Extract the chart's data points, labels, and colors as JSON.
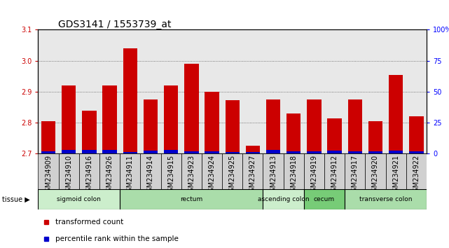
{
  "title": "GDS3141 / 1553739_at",
  "samples": [
    "GSM234909",
    "GSM234910",
    "GSM234916",
    "GSM234926",
    "GSM234911",
    "GSM234914",
    "GSM234915",
    "GSM234923",
    "GSM234924",
    "GSM234925",
    "GSM234927",
    "GSM234913",
    "GSM234918",
    "GSM234919",
    "GSM234912",
    "GSM234917",
    "GSM234920",
    "GSM234921",
    "GSM234922"
  ],
  "red_values": [
    2.805,
    2.92,
    2.84,
    2.92,
    3.04,
    2.875,
    2.92,
    2.99,
    2.9,
    2.872,
    2.725,
    2.875,
    2.83,
    2.875,
    2.815,
    2.875,
    2.805,
    2.955,
    2.82
  ],
  "blue_heights": [
    0.008,
    0.012,
    0.012,
    0.012,
    0.006,
    0.01,
    0.012,
    0.008,
    0.008,
    0.006,
    0.005,
    0.012,
    0.008,
    0.008,
    0.01,
    0.008,
    0.008,
    0.01,
    0.008
  ],
  "ymin": 2.7,
  "ymax": 3.1,
  "yticks": [
    2.7,
    2.8,
    2.9,
    3.0,
    3.1
  ],
  "right_yticks": [
    0,
    25,
    50,
    75,
    100
  ],
  "right_ytick_labels": [
    "0",
    "25",
    "50",
    "75",
    "100%"
  ],
  "red_color": "#cc0000",
  "blue_color": "#0000cc",
  "grid_color": "#555555",
  "tissue_groups": [
    {
      "label": "sigmoid colon",
      "start": 0,
      "end": 4,
      "color": "#cceecc"
    },
    {
      "label": "rectum",
      "start": 4,
      "end": 11,
      "color": "#aaddaa"
    },
    {
      "label": "ascending colon",
      "start": 11,
      "end": 13,
      "color": "#cceecc"
    },
    {
      "label": "cecum",
      "start": 13,
      "end": 15,
      "color": "#77cc77"
    },
    {
      "label": "transverse colon",
      "start": 15,
      "end": 19,
      "color": "#aaddaa"
    }
  ],
  "legend_red": "transformed count",
  "legend_blue": "percentile rank within the sample",
  "title_fontsize": 10,
  "tick_fontsize": 7,
  "label_fontsize": 7.5,
  "bar_width": 0.7
}
